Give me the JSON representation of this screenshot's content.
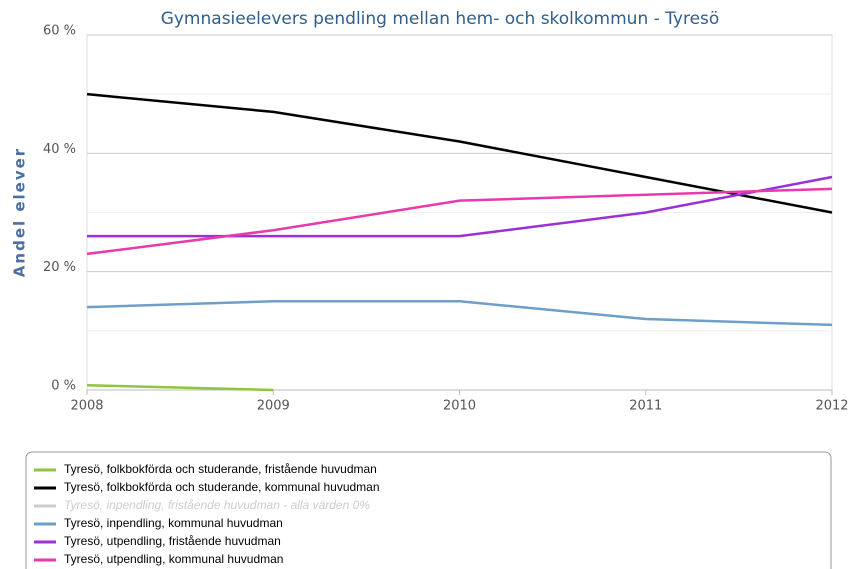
{
  "chart_data": {
    "type": "line",
    "title": "Gymnasieelevers pendling mellan hem- och skolkommun - Tyresö",
    "y_label": "Andel elever",
    "x": [
      2008,
      2009,
      2010,
      2011,
      2012
    ],
    "xlim": [
      2008,
      2012
    ],
    "xticks": [
      2008,
      2009,
      2010,
      2011,
      2012
    ],
    "ylim": [
      0,
      60
    ],
    "yticks": [
      {
        "value": 0,
        "label": "0 %"
      },
      {
        "value": 20,
        "label": "20 %"
      },
      {
        "value": 40,
        "label": "40 %"
      },
      {
        "value": 60,
        "label": "60 %"
      }
    ],
    "minor_yticks": [
      10,
      30,
      50
    ],
    "grid": true,
    "legend": "bottom",
    "series": [
      {
        "name": "Tyresö, folkbokförda och studerande, fristående huvudman",
        "color": "#8cc63f",
        "values": [
          0.8,
          0,
          null,
          null,
          null
        ]
      },
      {
        "name": "Tyresö, folkbokförda och studerande, kommunal huvudman",
        "color": "#000000",
        "values": [
          50,
          47,
          42,
          36,
          30
        ]
      },
      {
        "name": "Tyresö, inpendling, fristående huvudman - alla värden 0%",
        "color": "#cccccc",
        "hidden": true,
        "values": [
          null,
          null,
          null,
          null,
          null
        ]
      },
      {
        "name": "Tyresö, inpendling, kommunal huvudman",
        "color": "#6f9fc8",
        "values": [
          14,
          15,
          15,
          12,
          11
        ]
      },
      {
        "name": "Tyresö, utpendling, fristående huvudman",
        "color": "#9b30d9",
        "values": [
          26,
          26,
          26,
          30,
          36
        ]
      },
      {
        "name": "Tyresö, utpendling, kommunal huvudman",
        "color": "#e83aad",
        "values": [
          23,
          27,
          32,
          33,
          34
        ]
      }
    ]
  }
}
